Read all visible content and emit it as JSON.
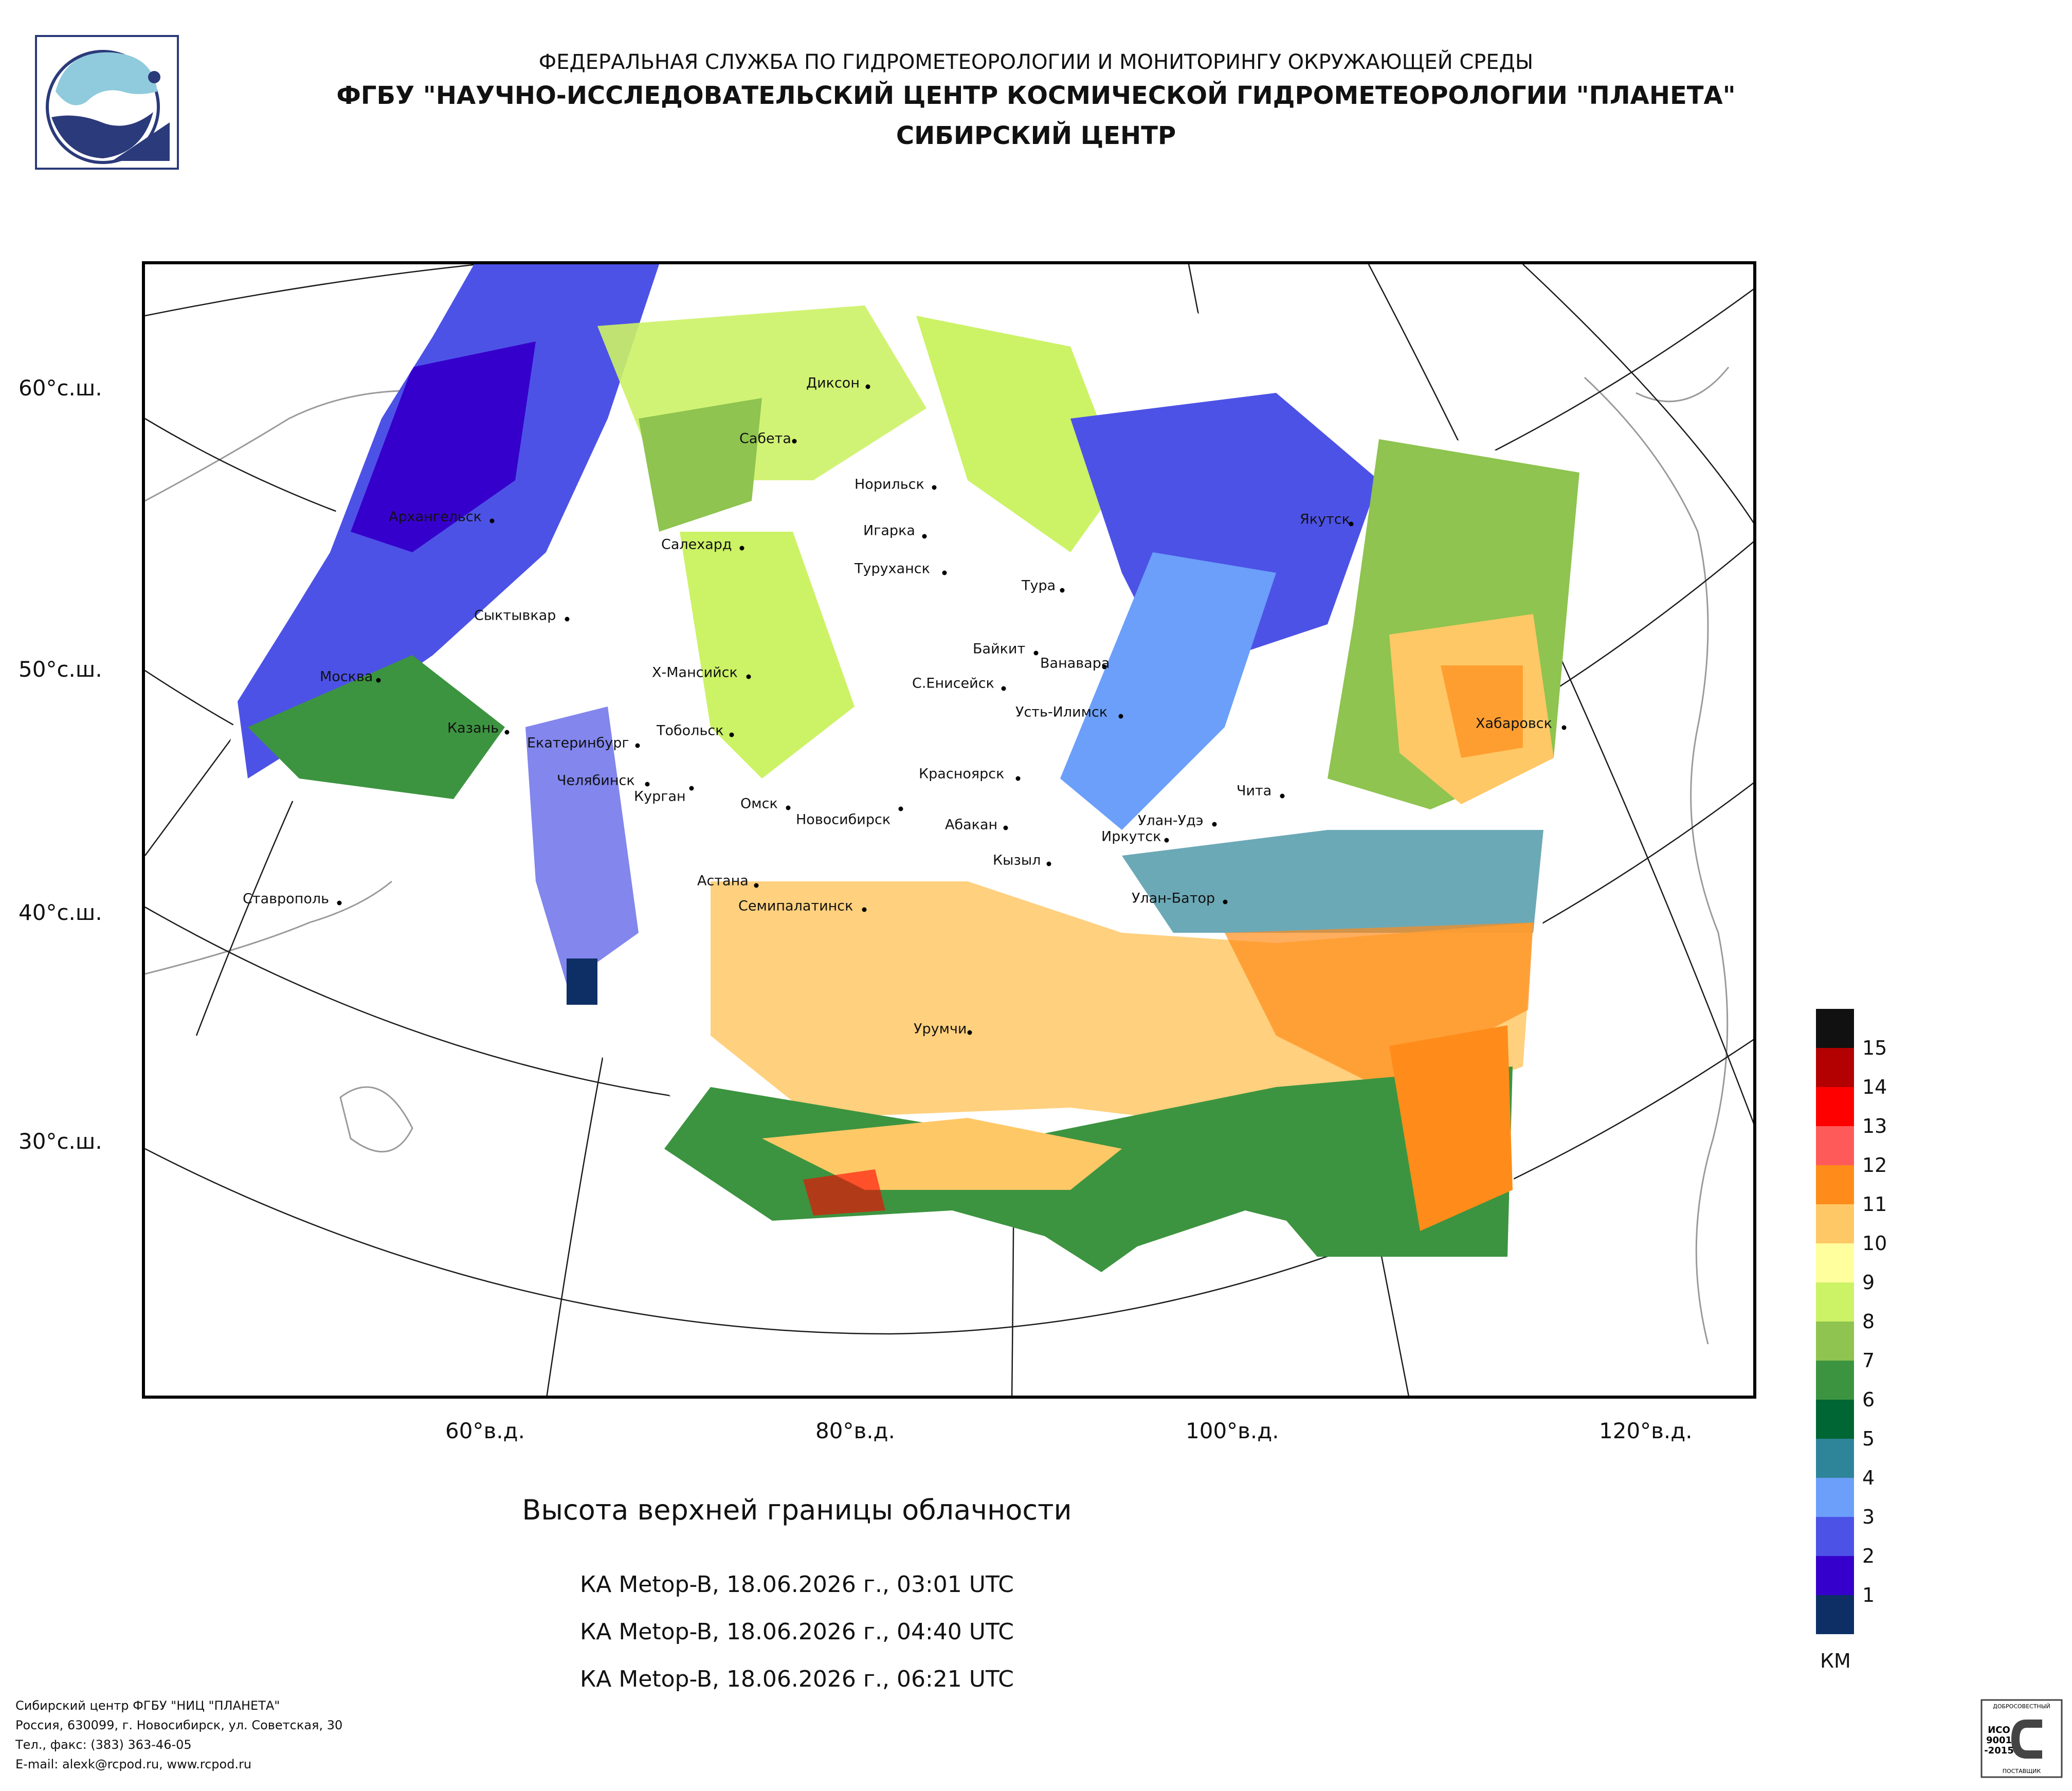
{
  "header": {
    "agency": "ФЕДЕРАЛЬНАЯ СЛУЖБА ПО ГИДРОМЕТЕОРОЛОГИИ И МОНИТОРИНГУ ОКРУЖАЮЩЕЙ СРЕДЫ",
    "institute": "ФГБУ \"НАУЧНО-ИССЛЕДОВАТЕЛЬСКИЙ ЦЕНТР КОСМИЧЕСКОЙ ГИДРОМЕТЕОРОЛОГИИ \"ПЛАНЕТА\"",
    "center": "СИБИРСКИЙ ЦЕНТР"
  },
  "map": {
    "lat_labels": [
      "60°с.ш.",
      "50°с.ш.",
      "40°с.ш.",
      "30°с.ш."
    ],
    "lon_labels": [
      "60°в.д.",
      "80°в.д.",
      "100°в.д.",
      "120°в.д."
    ],
    "cities": [
      "Диксон",
      "Сабета",
      "Норильск",
      "Архангельск",
      "Салехард",
      "Игарка",
      "Туруханск",
      "Якутск",
      "Тура",
      "Сыктывкар",
      "Байкит",
      "Ванавара",
      "Москва",
      "Х-Мансийск",
      "С.Енисейск",
      "Усть-Илимск",
      "Хабаровск",
      "Казань",
      "Тобольск",
      "Екатеринбург",
      "Челябинск",
      "Курган",
      "Красноярск",
      "Чита",
      "Омск",
      "Новосибирск",
      "Абакан",
      "Улан-Удэ",
      "Иркутск",
      "Кызыл",
      "Астана",
      "Ставрополь",
      "Улан-Батор",
      "Семипалатинск",
      "Урумчи"
    ]
  },
  "title": "Высота верхней границы облачности",
  "passes": [
    "КА Metop-B, 18.06.2026 г., 03:01 UTC",
    "КА Metop-B, 18.06.2026 г., 04:40 UTC",
    "КА Metop-B, 18.06.2026 г., 06:21 UTC"
  ],
  "legend": {
    "unit": "КМ",
    "levels": [
      "15",
      "14",
      "13",
      "12",
      "11",
      "10",
      "9",
      "8",
      "7",
      "6",
      "5",
      "4",
      "3",
      "2",
      "1"
    ],
    "colors": [
      "#111111",
      "#b30000",
      "#ff0000",
      "#ff5a5a",
      "#ff8c1a",
      "#ffc866",
      "#ffff9e",
      "#ccf266",
      "#8ec44f",
      "#3c9440",
      "#006633",
      "#2e8599",
      "#6b9ffa",
      "#4d52e6",
      "#3600cc",
      "#0d2f66"
    ]
  },
  "footer": [
    "Сибирский центр ФГБУ \"НИЦ \"ПЛАНЕТА\"",
    "Россия, 630099, г. Новосибирск, ул. Советская, 30",
    "Тел., факс: (383) 363-46-05",
    "E-mail: alexk@rcpod.ru, www.rcpod.ru"
  ],
  "iso_badge": {
    "top": "ДОБРОСОВЕСТНЫЙ",
    "l1": "ИСО",
    "l2": "9001",
    "l3": "-2015",
    "bottom": "ПОСТАВЩИК"
  }
}
